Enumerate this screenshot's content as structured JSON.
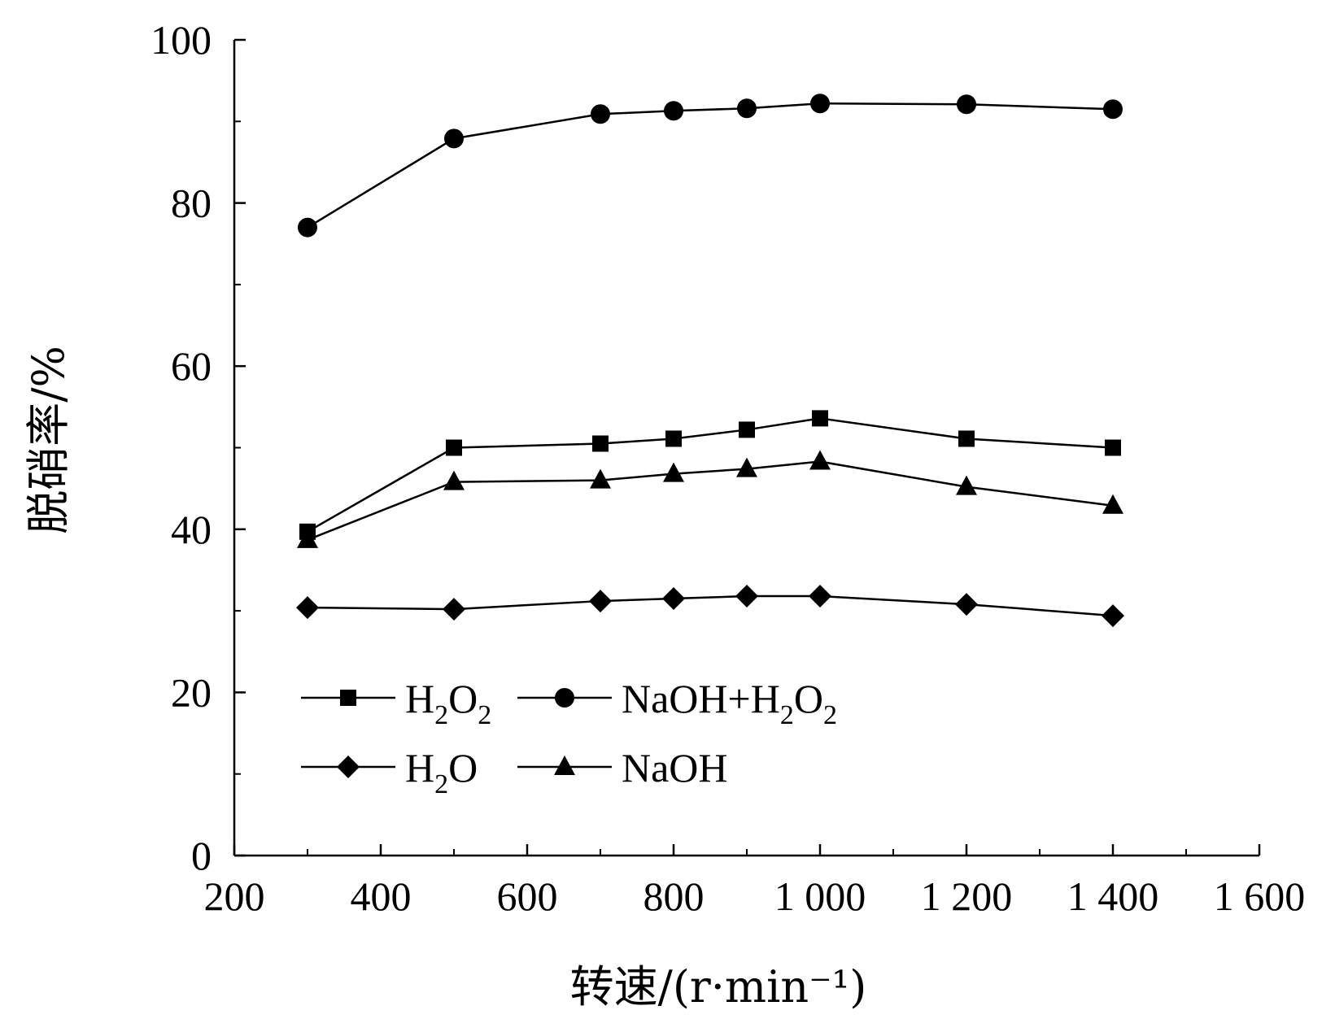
{
  "chart_data": {
    "type": "line",
    "xlabel": "转速/(r·min⁻¹)",
    "ylabel": "脱硝率/%",
    "xlim": [
      200,
      1600
    ],
    "ylim": [
      0,
      100
    ],
    "x_ticks": [
      200,
      400,
      600,
      800,
      1000,
      1200,
      1400,
      1600
    ],
    "x_tick_labels": [
      "200",
      "400",
      "600",
      "800",
      "1 000",
      "1 200",
      "1 400",
      "1 600"
    ],
    "y_ticks": [
      0,
      20,
      40,
      60,
      80,
      100
    ],
    "y_tick_labels": [
      "0",
      "20",
      "40",
      "60",
      "80",
      "100"
    ],
    "x": [
      300,
      500,
      700,
      800,
      900,
      1000,
      1200,
      1400
    ],
    "series": [
      {
        "name": "H2O2",
        "label_parts": [
          "H",
          "2",
          "O",
          "2"
        ],
        "marker": "square",
        "values": [
          39.7,
          50.0,
          50.5,
          51.1,
          52.2,
          53.6,
          51.1,
          50.0
        ]
      },
      {
        "name": "NaOH+H2O2",
        "label_parts": [
          "NaOH+H",
          "2",
          "O",
          "2"
        ],
        "marker": "circle",
        "values": [
          77.0,
          87.9,
          90.9,
          91.3,
          91.6,
          92.2,
          92.1,
          91.5
        ]
      },
      {
        "name": "H2O",
        "label_parts": [
          "H",
          "2",
          "O",
          ""
        ],
        "marker": "diamond",
        "values": [
          30.4,
          30.2,
          31.2,
          31.5,
          31.8,
          31.8,
          30.8,
          29.4
        ]
      },
      {
        "name": "NaOH",
        "label_parts": [
          "NaOH",
          "",
          "",
          ""
        ],
        "marker": "triangle",
        "values": [
          38.7,
          45.8,
          46.0,
          46.8,
          47.4,
          48.3,
          45.2,
          42.9
        ]
      }
    ],
    "legend": {
      "placement": "lower-left",
      "columns": 2
    },
    "grid": false,
    "color": "#000000"
  }
}
